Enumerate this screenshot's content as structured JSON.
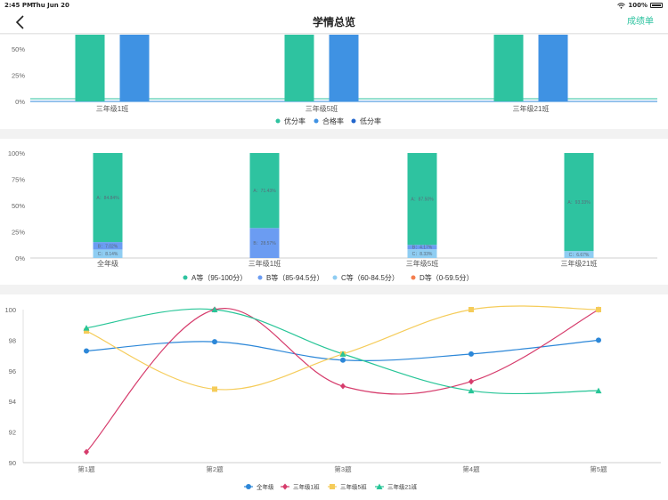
{
  "status_bar": {
    "time": "2:45 PM",
    "date": "Thu Jun 20",
    "battery": "100%"
  },
  "header": {
    "title": "学情总览",
    "right_action": "成绩单"
  },
  "icons": {
    "back": "chevron-left-icon",
    "wifi": "wifi-icon",
    "battery": "battery-icon"
  },
  "colors": {
    "accent": "#2ec3a0",
    "blue": "#3f92e3"
  },
  "chart_data": [
    {
      "type": "bar",
      "categories": [
        "三年级1班",
        "三年级5班",
        "三年级21班"
      ],
      "yticks": [
        "0%",
        "25%",
        "50%"
      ],
      "series": [
        {
          "name": "优分率",
          "color": "#2ec3a0",
          "values": [
            100,
            100,
            100
          ]
        },
        {
          "name": "合格率",
          "color": "#3f92e3",
          "values": [
            100,
            100,
            100
          ]
        },
        {
          "name": "低分率",
          "color": "#2266cc",
          "values": [
            0,
            0,
            0
          ]
        }
      ],
      "reference_line": 2.5,
      "ylim": [
        0,
        62
      ],
      "legend": "bottom"
    },
    {
      "type": "bar",
      "stacked": true,
      "categories": [
        "全年级",
        "三年级1班",
        "三年级5班",
        "三年级21班"
      ],
      "yticks": [
        "0%",
        "25%",
        "50%",
        "75%",
        "100%"
      ],
      "ylim": [
        0,
        100
      ],
      "series": [
        {
          "name": "A等（95-100分）",
          "color": "#2ec3a0",
          "values": [
            84.84,
            71.43,
            87.5,
            93.33
          ]
        },
        {
          "name": "B等（85-94.5分）",
          "color": "#6b9cf2",
          "values": [
            7.02,
            28.57,
            4.17,
            0
          ]
        },
        {
          "name": "C等（60-84.5分）",
          "color": "#8fcdf2",
          "values": [
            8.14,
            0,
            8.33,
            6.67
          ]
        },
        {
          "name": "D等（0-59.5分）",
          "color": "#f47e4e",
          "values": [
            0,
            0,
            0,
            0
          ]
        }
      ],
      "segment_labels": [
        [
          "A：84.84%",
          "B：7.02%",
          "C：8.14%"
        ],
        [
          "A：71.43%",
          "B：28.57%",
          ""
        ],
        [
          "A：87.50%",
          "B：4.17%",
          "C：8.33%"
        ],
        [
          "A：93.33%",
          "",
          "C：6.67%"
        ]
      ],
      "legend": "bottom"
    },
    {
      "type": "line",
      "smooth": true,
      "categories": [
        "第1题",
        "第2题",
        "第3题",
        "第4题",
        "第5题"
      ],
      "yticks": [
        "90",
        "92",
        "94",
        "96",
        "98",
        "100"
      ],
      "ylim": [
        90,
        100
      ],
      "series": [
        {
          "name": "全年级",
          "color": "#2c87d8",
          "marker": "circle",
          "values": [
            97.3,
            97.9,
            96.7,
            97.1,
            98.0
          ]
        },
        {
          "name": "三年级1班",
          "color": "#d63c6c",
          "marker": "diamond",
          "values": [
            90.7,
            100,
            95.0,
            95.3,
            100
          ]
        },
        {
          "name": "三年级5班",
          "color": "#f5cc5a",
          "marker": "square",
          "values": [
            98.6,
            94.8,
            97.1,
            100,
            100
          ]
        },
        {
          "name": "三年级21班",
          "color": "#27c597",
          "marker": "triangle",
          "values": [
            98.8,
            100,
            97.1,
            94.7,
            94.7
          ]
        }
      ],
      "legend": "bottom"
    }
  ]
}
